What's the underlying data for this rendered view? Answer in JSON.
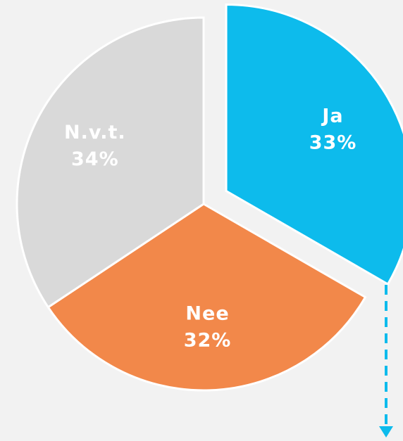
{
  "chart_data": {
    "type": "pie",
    "categories": [
      "Ja",
      "Nee",
      "N.v.t."
    ],
    "values": [
      33,
      32,
      34
    ],
    "value_labels": [
      "33%",
      "32%",
      "34%"
    ],
    "colors": [
      "#0dbbec",
      "#f2884a",
      "#d9d9d9"
    ],
    "explode": [
      true,
      false,
      false
    ]
  }
}
